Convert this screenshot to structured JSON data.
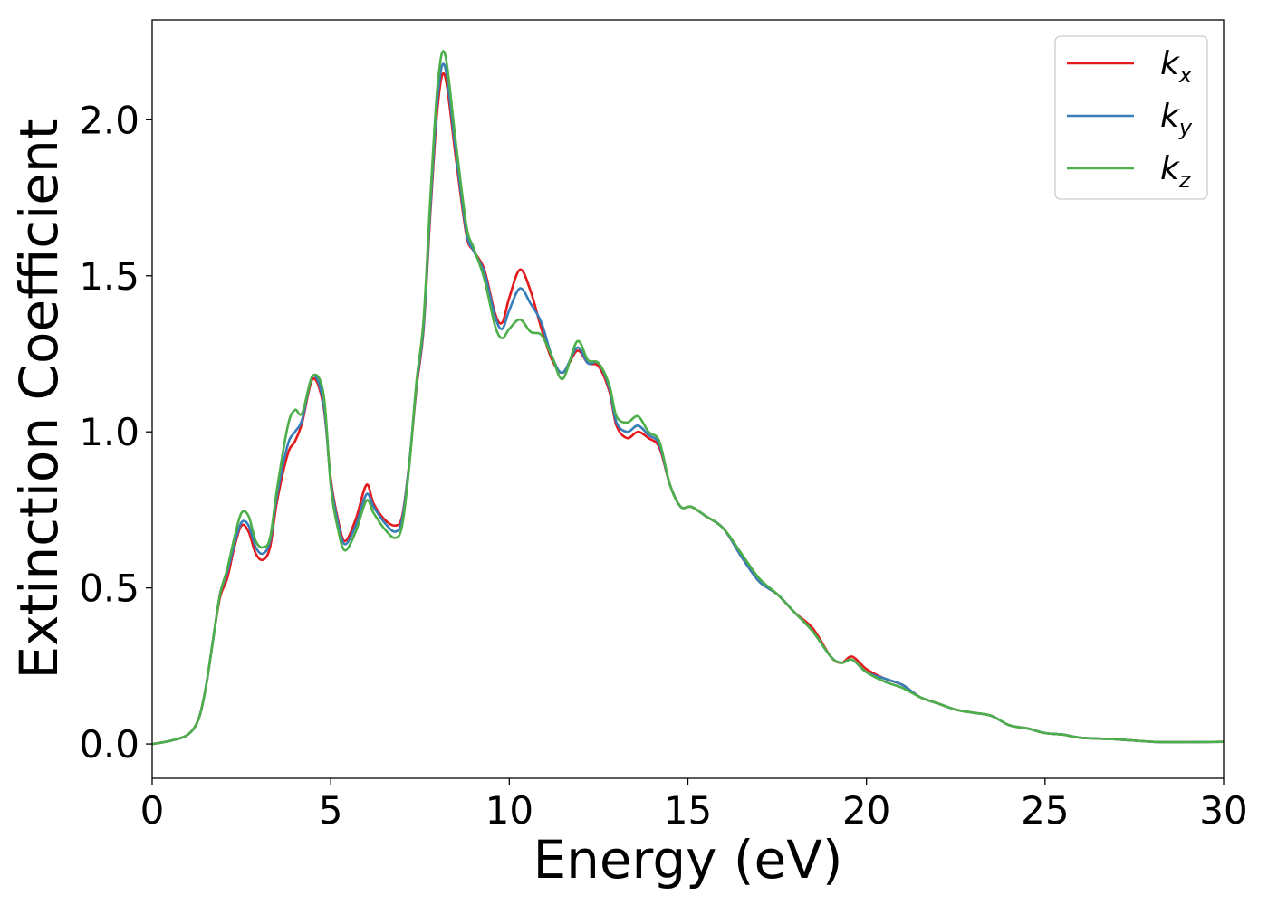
{
  "chart_data": {
    "type": "line",
    "xlabel": "Energy (eV)",
    "ylabel": "Extinction Coefficient",
    "xlim": [
      0,
      30
    ],
    "ylim": [
      -0.11,
      2.32
    ],
    "xticks": [
      0,
      5,
      10,
      15,
      20,
      25,
      30
    ],
    "xtick_labels": [
      "0",
      "5",
      "10",
      "15",
      "20",
      "25",
      "30"
    ],
    "yticks": [
      0.0,
      0.5,
      1.0,
      1.5,
      2.0
    ],
    "ytick_labels": [
      "0.0",
      "0.5",
      "1.0",
      "1.5",
      "2.0"
    ],
    "grid": false,
    "legend": "top-right",
    "series": [
      {
        "name": "k_x",
        "label_main": "k",
        "label_sub": "x",
        "color": "#e41a1c",
        "x": [
          0,
          0.5,
          1.0,
          1.3,
          1.5,
          1.7,
          1.9,
          2.1,
          2.3,
          2.5,
          2.7,
          2.9,
          3.1,
          3.3,
          3.5,
          3.8,
          4.0,
          4.2,
          4.5,
          4.8,
          5.0,
          5.2,
          5.4,
          5.7,
          6.0,
          6.2,
          6.5,
          6.8,
          7.0,
          7.2,
          7.4,
          7.6,
          7.8,
          8.0,
          8.2,
          8.5,
          8.8,
          9.0,
          9.3,
          9.6,
          9.8,
          10.0,
          10.3,
          10.6,
          10.9,
          11.2,
          11.5,
          11.9,
          12.2,
          12.5,
          12.8,
          13.0,
          13.3,
          13.6,
          13.9,
          14.2,
          14.5,
          14.8,
          15.1,
          15.5,
          16.0,
          16.5,
          17.0,
          17.5,
          18.0,
          18.5,
          19.0,
          19.3,
          19.6,
          20.0,
          20.5,
          21.0,
          21.5,
          22.0,
          22.5,
          23.0,
          23.5,
          24.0,
          24.5,
          25.0,
          25.5,
          26.0,
          27.0,
          28.0,
          29.0,
          30.0
        ],
        "y": [
          0.0,
          0.01,
          0.03,
          0.08,
          0.18,
          0.33,
          0.47,
          0.53,
          0.63,
          0.7,
          0.68,
          0.61,
          0.59,
          0.63,
          0.78,
          0.93,
          0.97,
          1.03,
          1.17,
          1.08,
          0.85,
          0.72,
          0.65,
          0.72,
          0.83,
          0.77,
          0.72,
          0.7,
          0.73,
          0.9,
          1.14,
          1.33,
          1.72,
          2.05,
          2.14,
          1.88,
          1.63,
          1.58,
          1.52,
          1.38,
          1.35,
          1.43,
          1.52,
          1.45,
          1.33,
          1.23,
          1.19,
          1.26,
          1.22,
          1.21,
          1.13,
          1.02,
          0.98,
          1.0,
          0.98,
          0.95,
          0.83,
          0.76,
          0.76,
          0.73,
          0.69,
          0.6,
          0.52,
          0.48,
          0.42,
          0.37,
          0.28,
          0.26,
          0.28,
          0.24,
          0.21,
          0.19,
          0.15,
          0.13,
          0.11,
          0.1,
          0.09,
          0.06,
          0.05,
          0.035,
          0.03,
          0.02,
          0.015,
          0.007,
          0.006,
          0.007
        ]
      },
      {
        "name": "k_y",
        "label_main": "k",
        "label_sub": "y",
        "color": "#377eb8",
        "x": [
          0,
          0.5,
          1.0,
          1.3,
          1.5,
          1.7,
          1.9,
          2.1,
          2.3,
          2.5,
          2.7,
          2.9,
          3.1,
          3.3,
          3.5,
          3.8,
          4.0,
          4.2,
          4.5,
          4.8,
          5.0,
          5.2,
          5.4,
          5.7,
          6.0,
          6.2,
          6.5,
          6.8,
          7.0,
          7.2,
          7.4,
          7.6,
          7.8,
          8.0,
          8.2,
          8.5,
          8.8,
          9.0,
          9.3,
          9.6,
          9.8,
          10.0,
          10.3,
          10.6,
          10.9,
          11.2,
          11.5,
          11.9,
          12.2,
          12.5,
          12.8,
          13.0,
          13.3,
          13.6,
          13.9,
          14.2,
          14.5,
          14.8,
          15.1,
          15.5,
          16.0,
          16.5,
          17.0,
          17.5,
          18.0,
          18.5,
          19.0,
          19.3,
          19.6,
          20.0,
          20.5,
          21.0,
          21.5,
          22.0,
          22.5,
          23.0,
          23.5,
          24.0,
          24.5,
          25.0,
          25.5,
          26.0,
          27.0,
          28.0,
          29.0,
          30.0
        ],
        "y": [
          0.0,
          0.01,
          0.03,
          0.08,
          0.18,
          0.33,
          0.48,
          0.55,
          0.64,
          0.71,
          0.7,
          0.63,
          0.61,
          0.65,
          0.8,
          0.96,
          1.0,
          1.04,
          1.18,
          1.09,
          0.84,
          0.71,
          0.64,
          0.7,
          0.8,
          0.76,
          0.71,
          0.68,
          0.72,
          0.9,
          1.15,
          1.34,
          1.74,
          2.08,
          2.17,
          1.9,
          1.64,
          1.58,
          1.51,
          1.37,
          1.33,
          1.39,
          1.46,
          1.41,
          1.35,
          1.24,
          1.19,
          1.27,
          1.22,
          1.22,
          1.14,
          1.03,
          1.0,
          1.02,
          0.99,
          0.96,
          0.83,
          0.76,
          0.76,
          0.73,
          0.69,
          0.6,
          0.52,
          0.48,
          0.42,
          0.36,
          0.28,
          0.26,
          0.27,
          0.23,
          0.21,
          0.19,
          0.15,
          0.13,
          0.11,
          0.1,
          0.09,
          0.06,
          0.05,
          0.035,
          0.03,
          0.02,
          0.015,
          0.007,
          0.006,
          0.007
        ]
      },
      {
        "name": "k_z",
        "label_main": "k",
        "label_sub": "z",
        "color": "#4daf4a",
        "x": [
          0,
          0.5,
          1.0,
          1.3,
          1.5,
          1.7,
          1.9,
          2.1,
          2.3,
          2.5,
          2.7,
          2.9,
          3.1,
          3.3,
          3.5,
          3.8,
          4.0,
          4.2,
          4.5,
          4.8,
          5.0,
          5.2,
          5.4,
          5.7,
          6.0,
          6.2,
          6.5,
          6.8,
          7.0,
          7.2,
          7.4,
          7.6,
          7.8,
          8.0,
          8.2,
          8.5,
          8.8,
          9.0,
          9.3,
          9.6,
          9.8,
          10.0,
          10.3,
          10.6,
          10.9,
          11.2,
          11.5,
          11.9,
          12.2,
          12.5,
          12.8,
          13.0,
          13.3,
          13.6,
          13.9,
          14.2,
          14.5,
          14.8,
          15.1,
          15.5,
          16.0,
          16.5,
          17.0,
          17.5,
          18.0,
          18.5,
          19.0,
          19.3,
          19.6,
          20.0,
          20.5,
          21.0,
          21.5,
          22.0,
          22.5,
          23.0,
          23.5,
          24.0,
          24.5,
          25.0,
          25.5,
          26.0,
          27.0,
          28.0,
          29.0,
          30.0
        ],
        "y": [
          0.0,
          0.01,
          0.03,
          0.08,
          0.18,
          0.33,
          0.48,
          0.56,
          0.66,
          0.74,
          0.73,
          0.65,
          0.63,
          0.66,
          0.82,
          1.02,
          1.07,
          1.06,
          1.18,
          1.12,
          0.83,
          0.69,
          0.62,
          0.68,
          0.78,
          0.74,
          0.69,
          0.66,
          0.7,
          0.89,
          1.16,
          1.36,
          1.77,
          2.12,
          2.21,
          1.93,
          1.66,
          1.59,
          1.49,
          1.34,
          1.3,
          1.33,
          1.36,
          1.32,
          1.31,
          1.24,
          1.17,
          1.29,
          1.23,
          1.22,
          1.15,
          1.05,
          1.03,
          1.05,
          1.0,
          0.97,
          0.83,
          0.76,
          0.76,
          0.73,
          0.69,
          0.61,
          0.53,
          0.48,
          0.42,
          0.36,
          0.28,
          0.26,
          0.27,
          0.23,
          0.2,
          0.18,
          0.15,
          0.13,
          0.11,
          0.1,
          0.09,
          0.06,
          0.05,
          0.035,
          0.03,
          0.02,
          0.015,
          0.007,
          0.006,
          0.007
        ]
      }
    ]
  }
}
